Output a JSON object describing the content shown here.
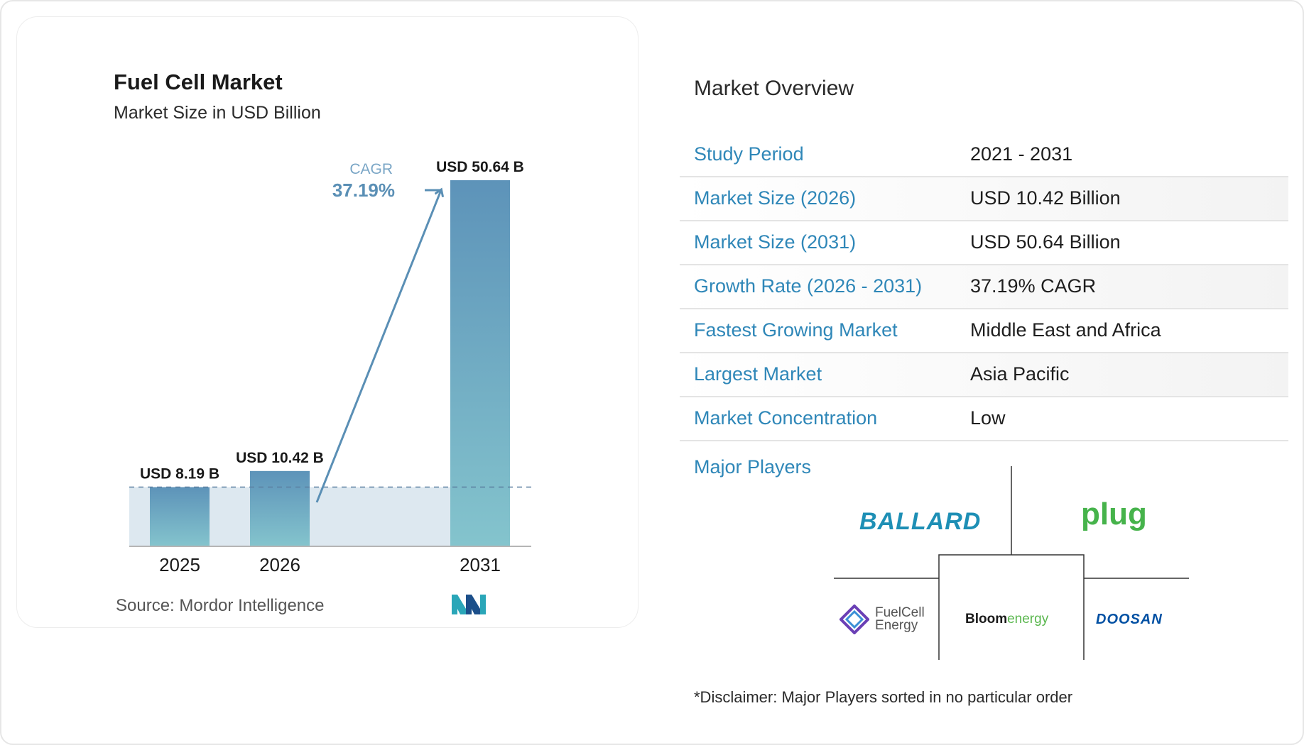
{
  "chart_card": {
    "title": "Fuel Cell Market",
    "subtitle": "Market Size in USD Billion",
    "source": "Source: Mordor Intelligence",
    "cagr_label": "CAGR",
    "cagr_value": "37.19%"
  },
  "chart_data": {
    "type": "bar",
    "title": "Fuel Cell Market",
    "subtitle": "Market Size in USD Billion",
    "categories": [
      "2025",
      "2026",
      "2031"
    ],
    "values": [
      8.19,
      10.42,
      50.64
    ],
    "data_labels": [
      "USD 8.19 B",
      "USD 10.42 B",
      "USD 50.64 B"
    ],
    "xlabel": "",
    "ylabel": "",
    "ylim": [
      0,
      50.64
    ],
    "grid": false,
    "annotation": "CAGR 37.19%",
    "colors": {
      "bar_top": "#5d93b9",
      "bar_bottom": "#84c4cd",
      "arrow": "#5a8fb5",
      "band": "#dde8f0",
      "cagr_text": "#5a8fb5"
    }
  },
  "overview": {
    "title": "Market Overview",
    "rows": [
      {
        "label": "Study Period",
        "value": "2021 - 2031"
      },
      {
        "label": "Market Size (2026)",
        "value": "USD 10.42 Billion"
      },
      {
        "label": "Market Size (2031)",
        "value": "USD 50.64 Billion"
      },
      {
        "label": "Growth Rate (2026 - 2031)",
        "value": "37.19% CAGR"
      },
      {
        "label": "Fastest Growing Market",
        "value": "Middle East and Africa"
      },
      {
        "label": "Largest Market",
        "value": "Asia Pacific"
      },
      {
        "label": "Market Concentration",
        "value": "Low"
      }
    ]
  },
  "players": {
    "label": "Major Players",
    "ballard": "BALLARD",
    "plug": "plug",
    "fuelcell": [
      "FuelCell",
      "Energy"
    ],
    "bloom_a": "Bloom",
    "bloom_b": "energy",
    "doosan": "DOOSAN"
  },
  "disclaimer": "*Disclaimer: Major Players sorted in no particular order"
}
